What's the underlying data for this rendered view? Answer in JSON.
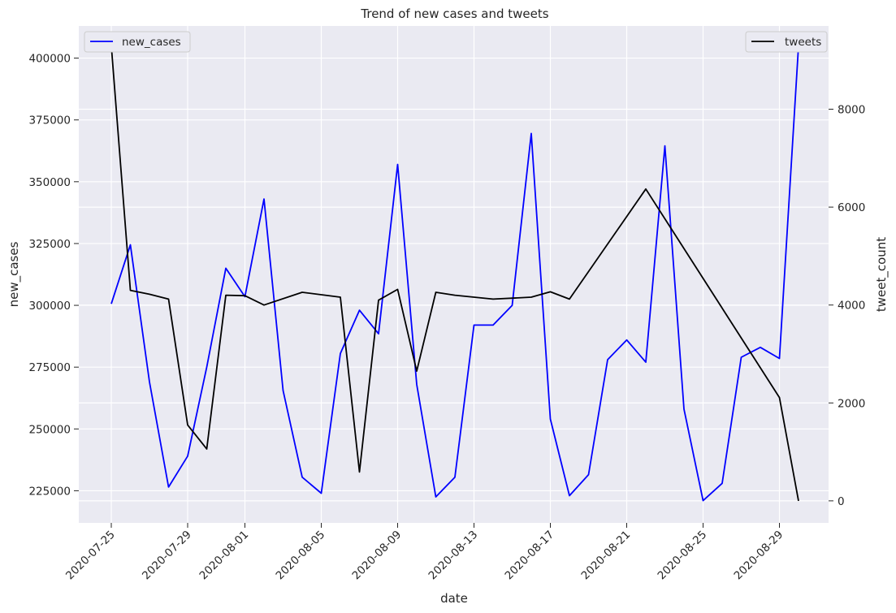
{
  "chart_data": {
    "type": "line",
    "title": "Trend of new cases and tweets",
    "xlabel": "date",
    "ylabel_left": "new_cases",
    "ylabel_right": "tweet_count",
    "x_start_date": "2020-07-25",
    "x_ticks": [
      "2020-07-25",
      "2020-07-29",
      "2020-08-01",
      "2020-08-05",
      "2020-08-09",
      "2020-08-13",
      "2020-08-17",
      "2020-08-21",
      "2020-08-25",
      "2020-08-29"
    ],
    "ylim_left": [
      212000,
      413000
    ],
    "ylim_right": [
      -450,
      9700
    ],
    "yticks_left": [
      225000,
      250000,
      275000,
      300000,
      325000,
      350000,
      375000,
      400000
    ],
    "yticks_right": [
      0,
      2000,
      4000,
      6000,
      8000
    ],
    "grid": true,
    "series": [
      {
        "name": "new_cases",
        "axis": "left",
        "color": "#0000ff",
        "legend_position": "upper-left",
        "points": [
          [
            "2020-07-25",
            300600
          ],
          [
            "2020-07-26",
            324500
          ],
          [
            "2020-07-27",
            269000
          ],
          [
            "2020-07-28",
            226500
          ],
          [
            "2020-07-29",
            239000
          ],
          [
            "2020-07-30",
            275000
          ],
          [
            "2020-07-31",
            315000
          ],
          [
            "2020-08-01",
            303500
          ],
          [
            "2020-08-02",
            343000
          ],
          [
            "2020-08-03",
            265500
          ],
          [
            "2020-08-04",
            230500
          ],
          [
            "2020-08-05",
            224000
          ],
          [
            "2020-08-06",
            280500
          ],
          [
            "2020-08-07",
            298000
          ],
          [
            "2020-08-08",
            288500
          ],
          [
            "2020-08-09",
            357000
          ],
          [
            "2020-08-10",
            268000
          ],
          [
            "2020-08-11",
            222500
          ],
          [
            "2020-08-12",
            230500
          ],
          [
            "2020-08-13",
            292000
          ],
          [
            "2020-08-14",
            292000
          ],
          [
            "2020-08-15",
            300000
          ],
          [
            "2020-08-16",
            369500
          ],
          [
            "2020-08-17",
            254000
          ],
          [
            "2020-08-18",
            223000
          ],
          [
            "2020-08-19",
            231500
          ],
          [
            "2020-08-20",
            278000
          ],
          [
            "2020-08-21",
            286000
          ],
          [
            "2020-08-22",
            277000
          ],
          [
            "2020-08-23",
            364500
          ],
          [
            "2020-08-24",
            258000
          ],
          [
            "2020-08-25",
            221000
          ],
          [
            "2020-08-26",
            228000
          ],
          [
            "2020-08-27",
            279000
          ],
          [
            "2020-08-28",
            283000
          ],
          [
            "2020-08-29",
            278500
          ],
          [
            "2020-08-30",
            405000
          ]
        ]
      },
      {
        "name": "tweets",
        "axis": "right",
        "color": "#000000",
        "legend_position": "upper-right",
        "points": [
          [
            "2020-07-25",
            9300
          ],
          [
            "2020-07-26",
            4300
          ],
          [
            "2020-07-27",
            4220
          ],
          [
            "2020-07-28",
            4120
          ],
          [
            "2020-07-29",
            1550
          ],
          [
            "2020-07-30",
            1060
          ],
          [
            "2020-07-31",
            4200
          ],
          [
            "2020-08-01",
            4190
          ],
          [
            "2020-08-02",
            4000
          ],
          [
            "2020-08-04",
            4260
          ],
          [
            "2020-08-06",
            4160
          ],
          [
            "2020-08-07",
            590
          ],
          [
            "2020-08-08",
            4100
          ],
          [
            "2020-08-09",
            4320
          ],
          [
            "2020-08-10",
            2650
          ],
          [
            "2020-08-11",
            4260
          ],
          [
            "2020-08-12",
            4200
          ],
          [
            "2020-08-14",
            4120
          ],
          [
            "2020-08-16",
            4160
          ],
          [
            "2020-08-17",
            4270
          ],
          [
            "2020-08-18",
            4120
          ],
          [
            "2020-08-22",
            6370
          ],
          [
            "2020-08-29",
            2110
          ],
          [
            "2020-08-30",
            0
          ]
        ]
      }
    ]
  }
}
